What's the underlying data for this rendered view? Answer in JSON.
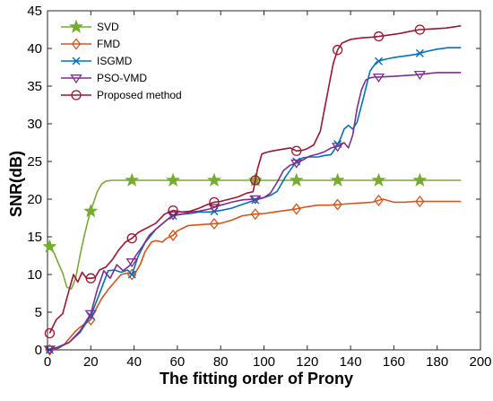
{
  "chart_data": {
    "type": "line",
    "title": "",
    "xlabel": "The fitting order of Prony",
    "ylabel": "SNR(dB)",
    "xlim": [
      0,
      200
    ],
    "ylim": [
      0,
      45
    ],
    "xticks": [
      0,
      20,
      40,
      60,
      80,
      100,
      120,
      140,
      160,
      180,
      200
    ],
    "yticks": [
      0,
      5,
      10,
      15,
      20,
      25,
      30,
      35,
      40,
      45
    ],
    "grid": false,
    "legend_position": "top-left",
    "series": [
      {
        "name": "SVD",
        "color": "#77ac30",
        "marker": "star",
        "x": [
          1,
          3,
          5,
          7,
          9,
          11,
          13,
          15,
          17,
          19,
          21,
          23,
          25,
          27,
          30,
          35,
          40,
          50,
          60,
          80,
          100,
          120,
          140,
          160,
          180,
          191
        ],
        "y": [
          13.7,
          12.9,
          11.5,
          10.2,
          8.3,
          8.1,
          9.5,
          12.5,
          15.2,
          17.5,
          19.3,
          21.0,
          22.0,
          22.4,
          22.5,
          22.5,
          22.5,
          22.5,
          22.5,
          22.5,
          22.5,
          22.5,
          22.5,
          22.5,
          22.5,
          22.5
        ],
        "marker_x": [
          1,
          20,
          39,
          58,
          77,
          96,
          115,
          134,
          153,
          172
        ]
      },
      {
        "name": "FMD",
        "color": "#d95319",
        "marker": "diamond",
        "x": [
          1,
          5,
          8,
          10,
          13,
          15,
          18,
          20,
          22,
          25,
          28,
          31,
          34,
          37,
          40,
          43,
          45,
          48,
          50,
          53,
          55,
          58,
          60,
          65,
          70,
          75,
          80,
          85,
          90,
          95,
          100,
          105,
          110,
          115,
          120,
          125,
          130,
          135,
          140,
          145,
          150,
          155,
          160,
          165,
          170,
          175,
          180,
          185,
          191
        ],
        "y": [
          0,
          0.2,
          0.8,
          1.5,
          2.5,
          3.0,
          3.6,
          4.0,
          5.2,
          6.8,
          8.0,
          9.0,
          10.0,
          10.2,
          9.9,
          11.4,
          13.0,
          14.3,
          14.5,
          14.3,
          14.8,
          15.2,
          15.8,
          16.5,
          16.6,
          16.7,
          16.8,
          17.2,
          17.8,
          18.0,
          18.1,
          18.3,
          18.5,
          18.7,
          19.0,
          19.2,
          19.2,
          19.3,
          19.4,
          19.5,
          19.6,
          20.0,
          19.6,
          19.6,
          19.7,
          19.7,
          19.7,
          19.7,
          19.7
        ],
        "marker_x": [
          1,
          20,
          39,
          58,
          77,
          96,
          115,
          134,
          153,
          172
        ]
      },
      {
        "name": "ISGMD",
        "color": "#0072bd",
        "marker": "x",
        "x": [
          1,
          5,
          10,
          15,
          20,
          25,
          28,
          31,
          34,
          37,
          39,
          42,
          45,
          50,
          55,
          58,
          62,
          66,
          70,
          75,
          80,
          85,
          90,
          95,
          100,
          103,
          106,
          110,
          113,
          115,
          118,
          121,
          125,
          128,
          131,
          133,
          135,
          137,
          139,
          141,
          143,
          146,
          149,
          152,
          155,
          160,
          165,
          170,
          175,
          180,
          185,
          191
        ],
        "y": [
          0,
          0.4,
          1.0,
          2.3,
          4.5,
          8.2,
          10.5,
          10.6,
          10.3,
          10.6,
          10.0,
          12.5,
          14.2,
          16.0,
          17.2,
          17.8,
          18.0,
          18.1,
          18.3,
          18.3,
          18.5,
          18.8,
          19.3,
          19.8,
          20.2,
          20.5,
          21.0,
          23.0,
          24.2,
          25.0,
          25.5,
          25.6,
          25.6,
          25.8,
          25.9,
          26.8,
          27.8,
          29.3,
          29.8,
          29.3,
          30.2,
          33.5,
          37.0,
          38.2,
          38.5,
          38.8,
          39.0,
          39.2,
          39.6,
          39.9,
          40.1,
          40.1
        ],
        "marker_x": [
          1,
          20,
          39,
          58,
          77,
          96,
          115,
          134,
          153,
          172
        ]
      },
      {
        "name": "PSO-VMD",
        "color": "#7e2f8e",
        "marker": "triangle-down",
        "x": [
          1,
          5,
          10,
          15,
          20,
          23,
          26,
          29,
          32,
          35,
          38,
          41,
          44,
          47,
          50,
          55,
          58,
          62,
          66,
          70,
          75,
          80,
          85,
          90,
          95,
          100,
          103,
          106,
          109,
          112,
          115,
          118,
          121,
          125,
          128,
          131,
          134,
          137,
          139,
          141,
          143,
          145,
          147,
          149,
          151,
          153,
          160,
          170,
          180,
          191
        ],
        "y": [
          0.1,
          0.3,
          1.0,
          2.5,
          4.8,
          8.0,
          10.5,
          9.5,
          11.3,
          10.5,
          11.2,
          12.6,
          13.8,
          15.2,
          16.0,
          17.2,
          17.9,
          18.0,
          18.3,
          18.4,
          18.7,
          19.2,
          19.6,
          19.9,
          20.0,
          20.2,
          20.8,
          22.2,
          23.8,
          24.5,
          24.8,
          25.2,
          25.7,
          26.0,
          26.3,
          26.8,
          27.0,
          27.5,
          26.8,
          28.5,
          32.0,
          34.5,
          35.8,
          36.1,
          36.2,
          36.2,
          36.3,
          36.5,
          36.8,
          36.8
        ],
        "marker_x": [
          1,
          20,
          39,
          58,
          77,
          96,
          115,
          134,
          153,
          172
        ]
      },
      {
        "name": "Proposed method",
        "color": "#a2142f",
        "marker": "circle",
        "x": [
          1,
          4,
          7,
          10,
          12,
          14,
          16,
          18,
          20,
          22,
          24,
          27,
          30,
          33,
          36,
          39,
          42,
          46,
          50,
          54,
          58,
          62,
          66,
          70,
          74,
          77,
          80,
          84,
          88,
          92,
          95,
          97,
          99,
          101,
          104,
          108,
          112,
          115,
          118,
          120,
          123,
          126,
          128,
          130,
          132,
          134,
          136,
          140,
          145,
          150,
          153,
          158,
          163,
          168,
          172,
          178,
          184,
          191
        ],
        "y": [
          2.2,
          4.0,
          4.8,
          8.0,
          10.0,
          9.0,
          10.3,
          9.5,
          9.5,
          9.6,
          10.6,
          11.0,
          12.0,
          13.3,
          14.3,
          14.8,
          15.6,
          16.2,
          16.8,
          18.0,
          18.5,
          18.3,
          18.4,
          18.8,
          19.3,
          19.6,
          19.7,
          20.0,
          20.3,
          20.8,
          21.0,
          24.0,
          26.0,
          26.2,
          26.4,
          26.6,
          26.8,
          26.4,
          26.5,
          26.7,
          27.2,
          29.0,
          32.0,
          35.0,
          38.0,
          39.8,
          40.7,
          41.2,
          41.4,
          41.5,
          41.6,
          41.8,
          42.0,
          42.3,
          42.5,
          42.6,
          42.7,
          43.0
        ],
        "marker_x": [
          1,
          20,
          39,
          58,
          77,
          96,
          115,
          134,
          153,
          172
        ]
      }
    ]
  }
}
